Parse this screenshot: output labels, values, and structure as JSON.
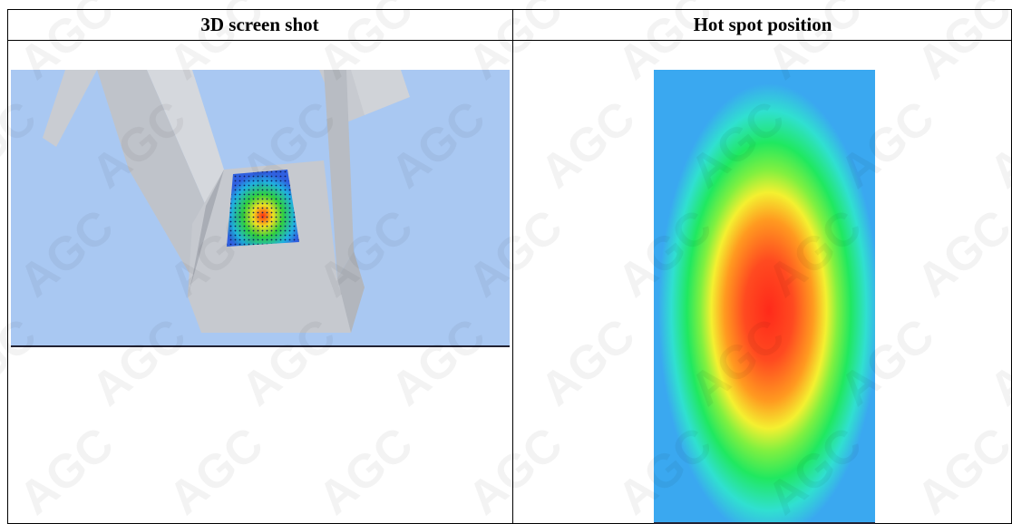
{
  "table": {
    "headers": [
      "3D screen shot",
      "Hot spot position"
    ]
  },
  "watermark": "AGC"
}
